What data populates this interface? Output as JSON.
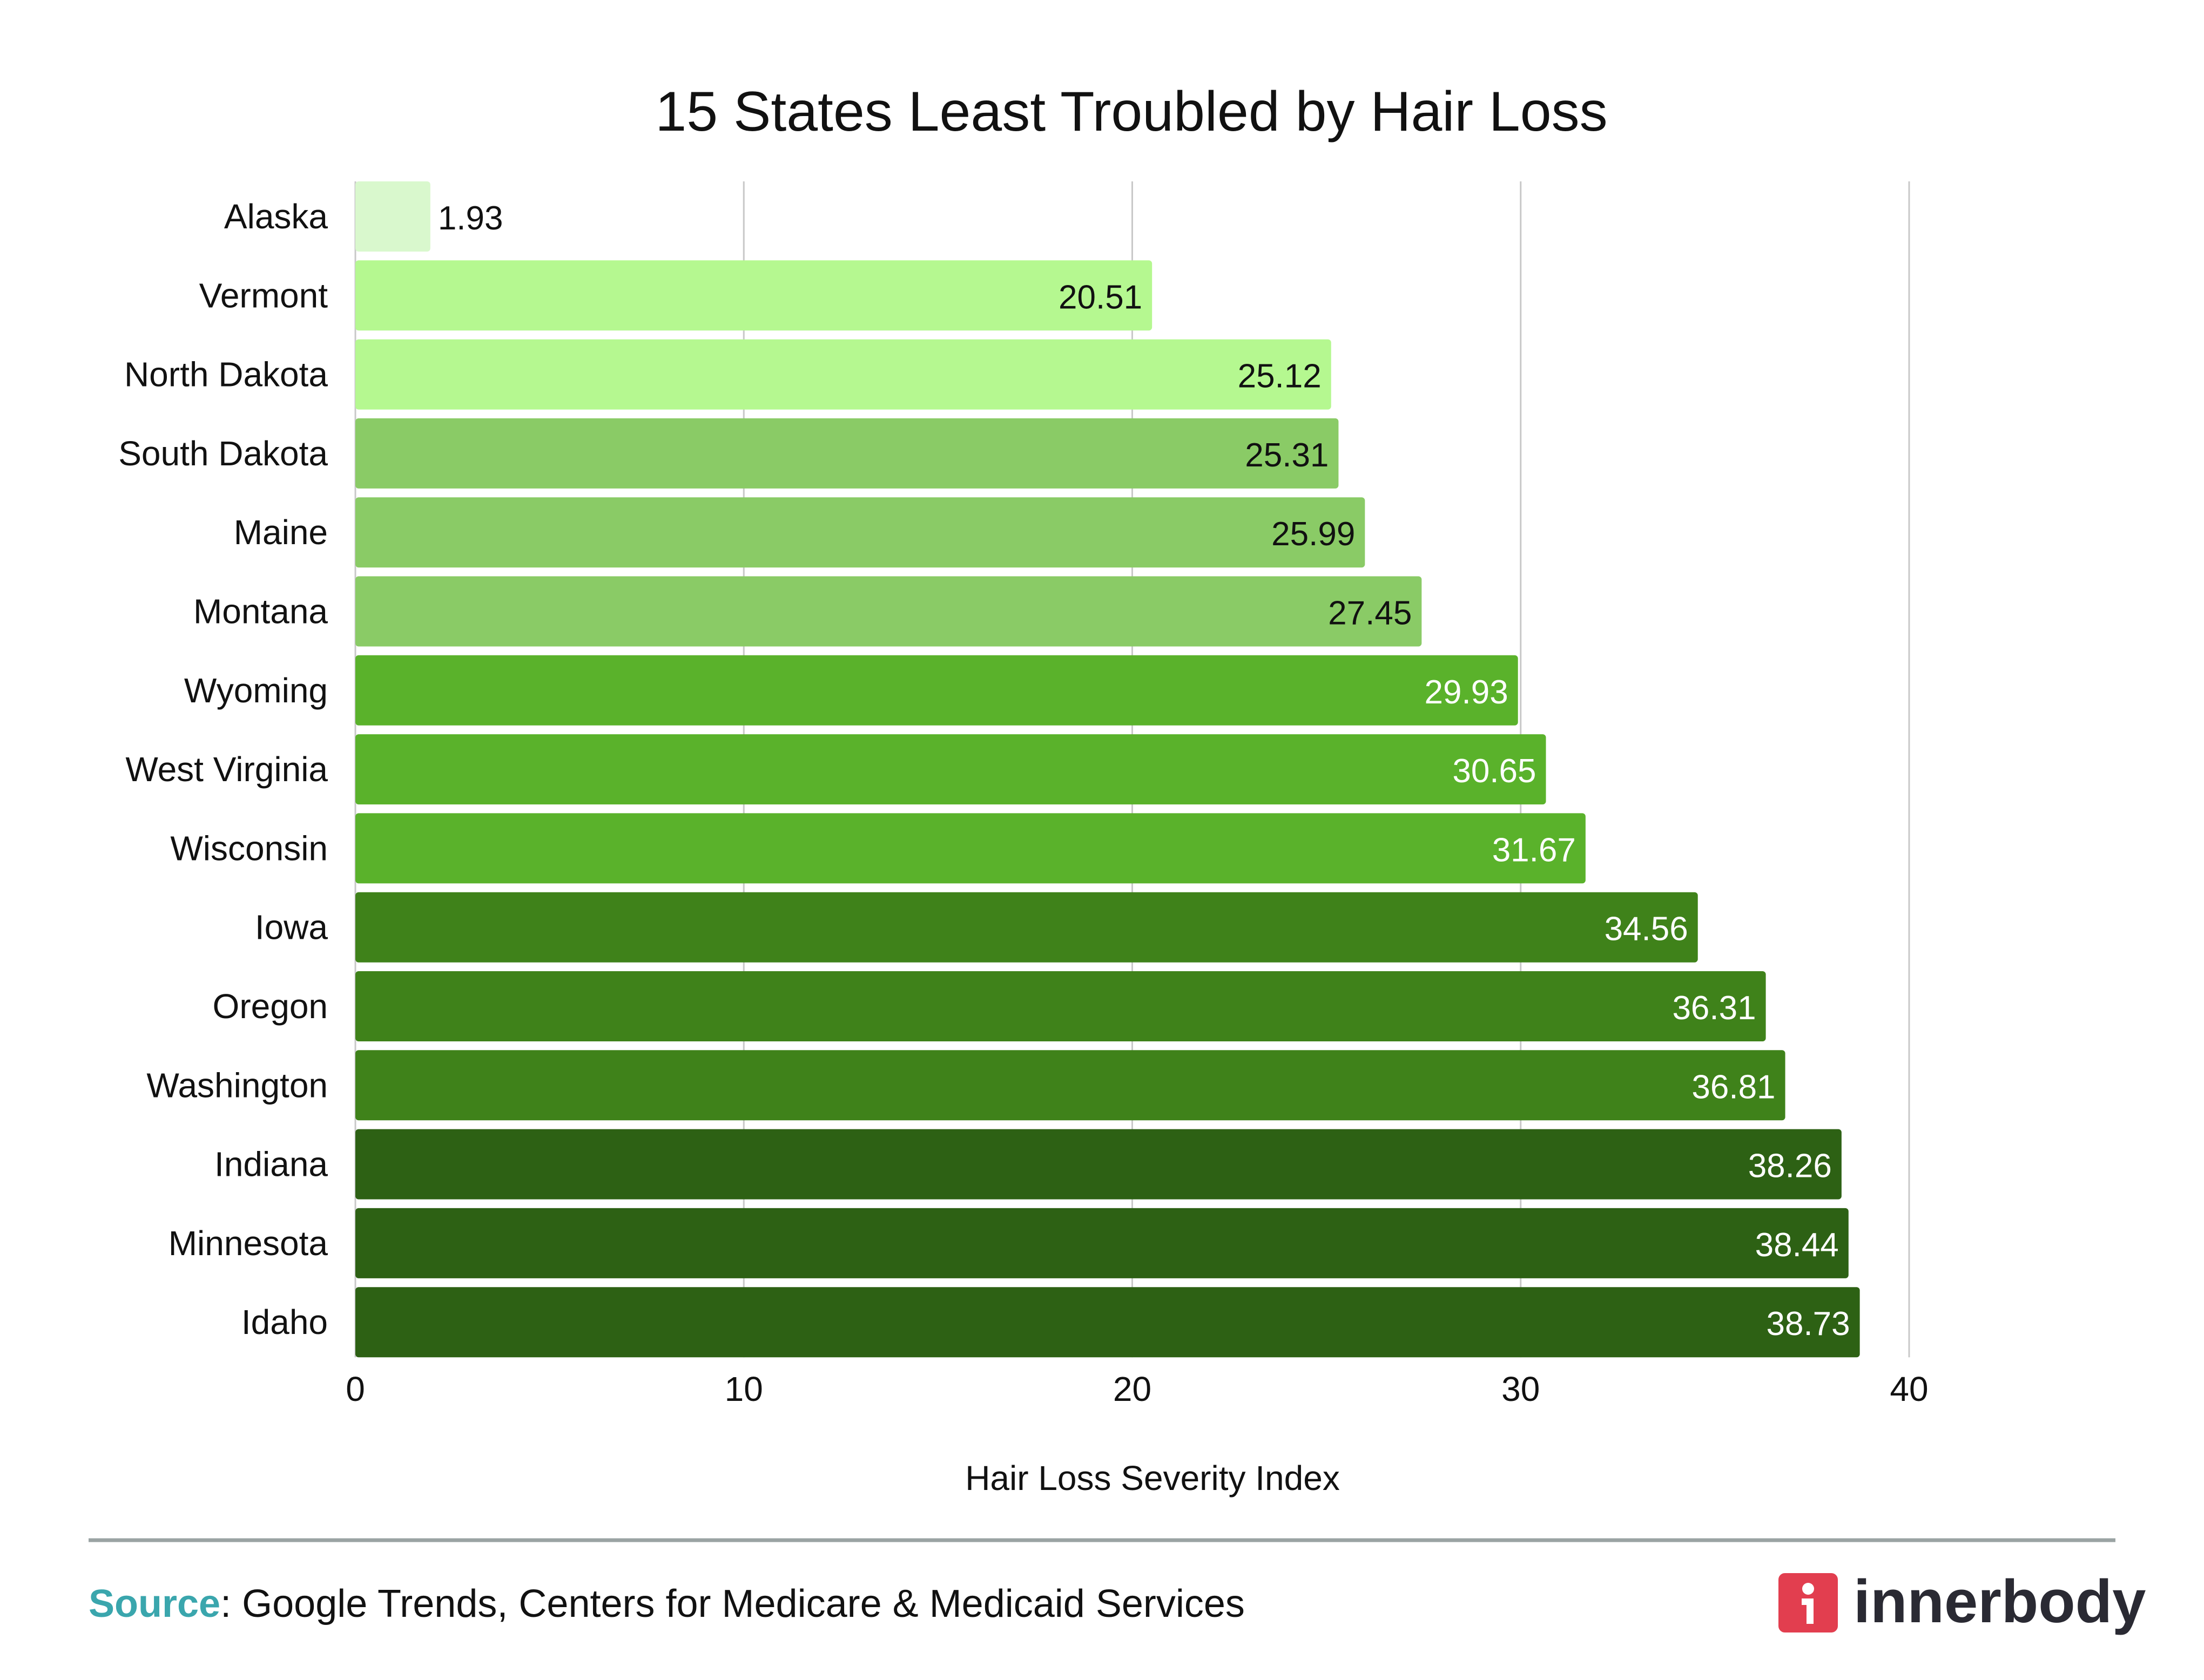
{
  "chart_data": {
    "type": "bar",
    "orientation": "horizontal",
    "title": "15 States Least Troubled by Hair Loss",
    "xlabel": "Hair Loss Severity Index",
    "ylabel": "",
    "xlim": [
      0,
      40
    ],
    "xticks": [
      "0",
      "10",
      "20",
      "30",
      "40"
    ],
    "grid": true,
    "categories": [
      "Alaska",
      "Vermont",
      "North Dakota",
      "South Dakota",
      "Maine",
      "Montana",
      "Wyoming",
      "West Virginia",
      "Wisconsin",
      "Iowa",
      "Oregon",
      "Washington",
      "Indiana",
      "Minnesota",
      "Idaho"
    ],
    "values": [
      1.93,
      20.51,
      25.12,
      25.31,
      25.99,
      27.45,
      29.93,
      30.65,
      31.67,
      34.56,
      36.31,
      36.81,
      38.26,
      38.44,
      38.73
    ],
    "value_labels": [
      "1.93",
      "20.51",
      "25.12",
      "25.31",
      "25.99",
      "27.45",
      "29.93",
      "30.65",
      "31.67",
      "34.56",
      "36.31",
      "36.81",
      "38.26",
      "38.44",
      "38.73"
    ],
    "colors": [
      "#d9f8cd",
      "#b5f890",
      "#b5f890",
      "#8acb66",
      "#8acb66",
      "#8acb66",
      "#5ab22b",
      "#5ab22b",
      "#5ab22b",
      "#3f821a",
      "#3f821a",
      "#3f821a",
      "#2d6114",
      "#2d6114",
      "#2d6114"
    ],
    "label_colors": [
      "#111111",
      "#111111",
      "#111111",
      "#111111",
      "#111111",
      "#111111",
      "#ffffff",
      "#ffffff",
      "#ffffff",
      "#ffffff",
      "#ffffff",
      "#ffffff",
      "#ffffff",
      "#ffffff",
      "#ffffff"
    ]
  },
  "footer": {
    "source_label": "Source",
    "source_text": ": Google Trends, Centers for Medicare & Medicaid Services",
    "source_label_color": "#3aa6ad",
    "divider_color": "#9aa3a3"
  },
  "logo": {
    "text": "innerbody",
    "icon_letter": "i",
    "icon_color": "#e23e4f"
  }
}
